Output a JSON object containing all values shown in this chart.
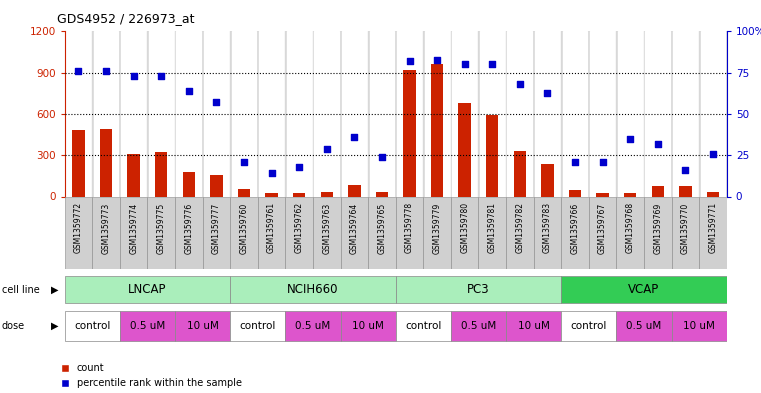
{
  "title": "GDS4952 / 226973_at",
  "samples": [
    "GSM1359772",
    "GSM1359773",
    "GSM1359774",
    "GSM1359775",
    "GSM1359776",
    "GSM1359777",
    "GSM1359760",
    "GSM1359761",
    "GSM1359762",
    "GSM1359763",
    "GSM1359764",
    "GSM1359765",
    "GSM1359778",
    "GSM1359779",
    "GSM1359780",
    "GSM1359781",
    "GSM1359782",
    "GSM1359783",
    "GSM1359766",
    "GSM1359767",
    "GSM1359768",
    "GSM1359769",
    "GSM1359770",
    "GSM1359771"
  ],
  "counts": [
    480,
    490,
    310,
    320,
    175,
    155,
    55,
    25,
    25,
    30,
    80,
    30,
    920,
    960,
    680,
    590,
    330,
    235,
    50,
    25,
    25,
    75,
    75,
    30
  ],
  "percentiles": [
    76,
    76,
    73,
    73,
    64,
    57,
    21,
    14,
    18,
    29,
    36,
    24,
    82,
    83,
    80,
    80,
    68,
    63,
    21,
    21,
    35,
    32,
    16,
    26
  ],
  "cell_lines": [
    "LNCAP",
    "NCIH660",
    "PC3",
    "VCAP"
  ],
  "cell_line_spans": [
    6,
    6,
    6,
    6
  ],
  "cell_line_colors": [
    "#aaeebb",
    "#aaeebb",
    "#aaeebb",
    "#44dd66"
  ],
  "bar_color": "#cc2200",
  "dot_color": "#0000cc",
  "ylim_left": [
    0,
    1200
  ],
  "ylim_right": [
    0,
    100
  ],
  "yticks_left": [
    0,
    300,
    600,
    900,
    1200
  ],
  "yticks_right": [
    0,
    25,
    50,
    75,
    100
  ]
}
